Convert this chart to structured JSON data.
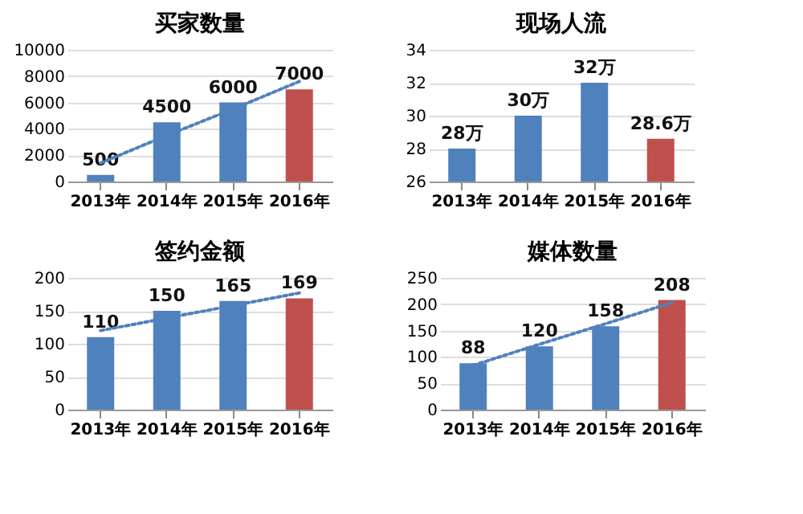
{
  "chart_data": [
    {
      "type": "bar",
      "title": "买家数量",
      "categories": [
        "2013年",
        "2014年",
        "2015年",
        "2016年"
      ],
      "ylim": [
        0,
        10000
      ],
      "yticks": [
        0,
        2000,
        4000,
        6000,
        8000,
        10000
      ],
      "grid": "y",
      "series": [
        {
          "values": [
            500,
            4500,
            6000,
            7000
          ],
          "colors": [
            "#4f81bd",
            "#4f81bd",
            "#4f81bd",
            "#c0504d"
          ],
          "value_labels": [
            "500",
            "4500",
            "6000",
            "7000"
          ]
        },
        {
          "type": "line",
          "line_style": "dotted",
          "color": "#4f81bd",
          "values": [
            1400,
            3500,
            5500,
            7600
          ]
        }
      ]
    },
    {
      "type": "bar",
      "title": "现场人流",
      "categories": [
        "2013年",
        "2014年",
        "2015年",
        "2016年"
      ],
      "ylim": [
        26,
        34
      ],
      "yticks": [
        26,
        28,
        30,
        32,
        34
      ],
      "grid": "y",
      "series": [
        {
          "values": [
            28,
            30,
            32,
            28.6
          ],
          "colors": [
            "#4f81bd",
            "#4f81bd",
            "#4f81bd",
            "#c0504d"
          ],
          "value_labels": [
            "28万",
            "30万",
            "32万",
            "28.6万"
          ]
        }
      ]
    },
    {
      "type": "bar",
      "title": "签约金额",
      "categories": [
        "2013年",
        "2014年",
        "2015年",
        "2016年"
      ],
      "ylim": [
        0,
        200
      ],
      "yticks": [
        0,
        50,
        100,
        150,
        200
      ],
      "grid": "y",
      "series": [
        {
          "values": [
            110,
            150,
            165,
            169
          ],
          "colors": [
            "#4f81bd",
            "#4f81bd",
            "#4f81bd",
            "#c0504d"
          ],
          "value_labels": [
            "110",
            "150",
            "165",
            "169"
          ]
        },
        {
          "type": "line",
          "line_style": "dotted",
          "color": "#4f81bd",
          "values": [
            120,
            139,
            158,
            177
          ]
        }
      ]
    },
    {
      "type": "bar",
      "title": "媒体数量",
      "categories": [
        "2013年",
        "2014年",
        "2015年",
        "2016年"
      ],
      "ylim": [
        0,
        250
      ],
      "yticks": [
        0,
        50,
        100,
        150,
        200,
        250
      ],
      "grid": "y",
      "series": [
        {
          "values": [
            88,
            120,
            158,
            208
          ],
          "colors": [
            "#4f81bd",
            "#4f81bd",
            "#4f81bd",
            "#c0504d"
          ],
          "value_labels": [
            "88",
            "120",
            "158",
            "208"
          ]
        },
        {
          "type": "line",
          "line_style": "dotted",
          "color": "#4f81bd",
          "values": [
            84,
            124,
            163,
            203
          ]
        }
      ]
    }
  ]
}
